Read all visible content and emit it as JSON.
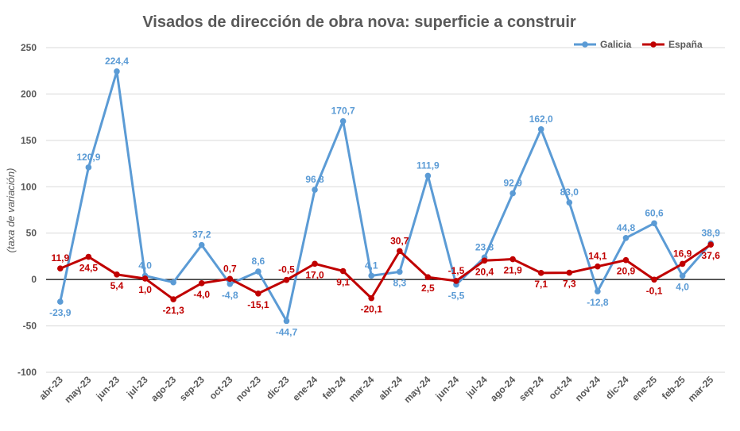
{
  "chart_data": {
    "type": "line",
    "title": "Visados de dirección de obra nova: superficie a construir",
    "ylabel": "(taxa de variación)",
    "ylim": [
      -100,
      250
    ],
    "yticks": [
      -100,
      -50,
      0,
      50,
      100,
      150,
      200,
      250
    ],
    "grid": true,
    "legend": "top-right",
    "categories": [
      "abr-23",
      "may-23",
      "jun-23",
      "jul-23",
      "ago-23",
      "sep-23",
      "oct-23",
      "nov-23",
      "dic-23",
      "ene-24",
      "feb-24",
      "mar-24",
      "abr-24",
      "may-24",
      "jun-24",
      "jul-24",
      "ago-24",
      "sep-24",
      "oct-24",
      "nov-24",
      "dic-24",
      "ene-25",
      "feb-25",
      "mar-25"
    ],
    "series": [
      {
        "name": "Galicia",
        "color": "#5B9BD5",
        "values": [
          -23.9,
          120.9,
          224.4,
          4.0,
          -3.0,
          37.2,
          -4.8,
          8.6,
          -44.7,
          96.8,
          170.7,
          4.1,
          8.3,
          111.9,
          -5.5,
          23.8,
          92.9,
          162.0,
          83.0,
          -12.8,
          44.8,
          60.6,
          4.0,
          38.9
        ],
        "labels": [
          "-23,9",
          "120,9",
          "224,4",
          "4,0",
          "",
          "37,2",
          "-4,8",
          "8,6",
          "-44,7",
          "96,8",
          "170,7",
          "4,1",
          "8,3",
          "111,9",
          "-5,5",
          "23,8",
          "92,9",
          "162,0",
          "83,0",
          "-12,8",
          "44,8",
          "60,6",
          "4,0",
          "38,9"
        ]
      },
      {
        "name": "España",
        "color": "#C00000",
        "values": [
          11.9,
          24.5,
          5.4,
          1.0,
          -21.3,
          -4.0,
          0.7,
          -15.1,
          -0.5,
          17.0,
          9.1,
          -20.1,
          30.7,
          2.5,
          -1.5,
          20.4,
          21.9,
          7.1,
          7.3,
          14.1,
          20.9,
          -0.1,
          16.9,
          37.6
        ],
        "labels": [
          "11,9",
          "24,5",
          "5,4",
          "1,0",
          "-21,3",
          "-4,0",
          "0,7",
          "-15,1",
          "-0,5",
          "17,0",
          "9,1",
          "-20,1",
          "30,7",
          "2,5",
          "-1,5",
          "20,4",
          "21,9",
          "7,1",
          "7,3",
          "14,1",
          "20,9",
          "-0,1",
          "16,9",
          "37,6"
        ]
      }
    ]
  }
}
